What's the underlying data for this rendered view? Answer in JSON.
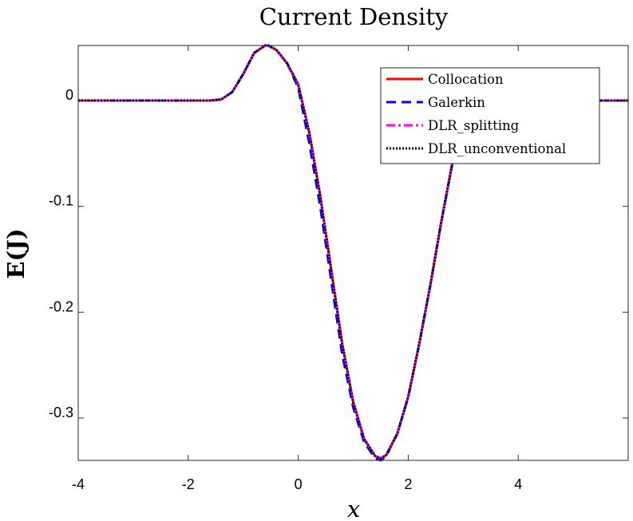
{
  "chart_data": {
    "type": "line",
    "title": "Current Density",
    "xlabel": "x",
    "ylabel": "E(J)",
    "xlim": [
      -4,
      6
    ],
    "ylim": [
      -0.34,
      0.052
    ],
    "xticks": [
      -4,
      -2,
      0,
      2,
      4
    ],
    "xtick_labels": [
      "-4",
      "-2",
      "0",
      "2",
      "4"
    ],
    "yticks": [
      0,
      -0.1,
      -0.2,
      -0.3
    ],
    "ytick_labels": [
      "0",
      "-0.1",
      "-0.2",
      "-0.3"
    ],
    "grid": false,
    "legend_position": "top-right",
    "x": [
      -4,
      -3,
      -2,
      -1.6,
      -1.4,
      -1.2,
      -1.0,
      -0.8,
      -0.6,
      -0.55,
      -0.4,
      -0.2,
      0.0,
      0.2,
      0.4,
      0.6,
      0.8,
      1.0,
      1.2,
      1.4,
      1.5,
      1.6,
      1.8,
      2.0,
      2.2,
      2.4,
      2.6,
      2.8,
      3.0,
      3.2,
      3.4,
      3.6,
      4.0,
      5.0,
      6.0
    ],
    "series": [
      {
        "name": "Collocation",
        "color": "#ff0000",
        "dash": "solid",
        "values": [
          0,
          0,
          0,
          0,
          0.001,
          0.008,
          0.025,
          0.045,
          0.052,
          0.052,
          0.048,
          0.035,
          0.015,
          -0.03,
          -0.09,
          -0.16,
          -0.23,
          -0.285,
          -0.32,
          -0.336,
          -0.338,
          -0.335,
          -0.315,
          -0.28,
          -0.23,
          -0.175,
          -0.115,
          -0.06,
          -0.022,
          -0.004,
          0,
          0,
          0,
          0,
          0
        ]
      },
      {
        "name": "Galerkin",
        "color": "#0000ff",
        "dash": "dashed",
        "values": [
          0,
          0,
          0,
          0,
          0.001,
          0.008,
          0.025,
          0.045,
          0.052,
          0.052,
          0.048,
          0.035,
          0.012,
          -0.04,
          -0.1,
          -0.17,
          -0.24,
          -0.29,
          -0.323,
          -0.338,
          -0.34,
          -0.336,
          -0.315,
          -0.28,
          -0.23,
          -0.175,
          -0.115,
          -0.06,
          -0.022,
          -0.004,
          0,
          0,
          0,
          0,
          0
        ]
      },
      {
        "name": "DLR_splitting",
        "color": "#ff00ff",
        "dash": "dashdot",
        "values": [
          0,
          0,
          0,
          0,
          0.001,
          0.008,
          0.025,
          0.045,
          0.052,
          0.052,
          0.048,
          0.035,
          0.015,
          -0.03,
          -0.09,
          -0.16,
          -0.23,
          -0.285,
          -0.32,
          -0.336,
          -0.338,
          -0.335,
          -0.315,
          -0.28,
          -0.23,
          -0.175,
          -0.115,
          -0.06,
          -0.022,
          -0.004,
          0,
          0,
          0,
          0,
          0
        ]
      },
      {
        "name": "DLR_unconventional",
        "color": "#000000",
        "dash": "dotted",
        "values": [
          0,
          0,
          0,
          0,
          0.001,
          0.008,
          0.025,
          0.045,
          0.052,
          0.052,
          0.048,
          0.035,
          0.015,
          -0.03,
          -0.09,
          -0.16,
          -0.23,
          -0.285,
          -0.32,
          -0.336,
          -0.338,
          -0.335,
          -0.315,
          -0.28,
          -0.23,
          -0.175,
          -0.115,
          -0.06,
          -0.022,
          -0.004,
          0,
          0,
          0,
          0,
          0
        ]
      }
    ]
  }
}
